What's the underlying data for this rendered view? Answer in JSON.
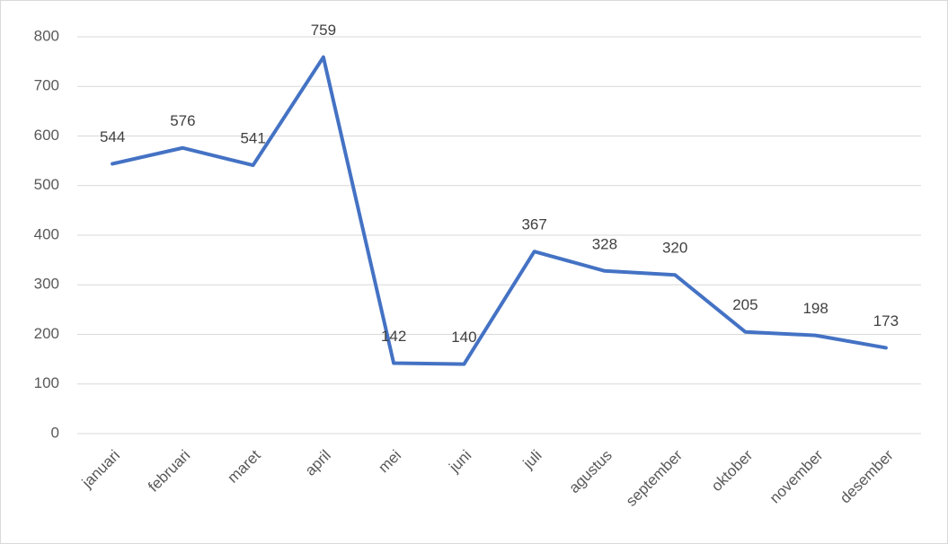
{
  "chart_data": {
    "type": "line",
    "categories": [
      "januari",
      "februari",
      "maret",
      "april",
      "mei",
      "juni",
      "juli",
      "agustus",
      "september",
      "oktober",
      "november",
      "desember"
    ],
    "values": [
      544,
      576,
      541,
      759,
      142,
      140,
      367,
      328,
      320,
      205,
      198,
      173
    ],
    "color": "#4472c4",
    "ylim": [
      0,
      800
    ],
    "yticks": [
      0,
      100,
      200,
      300,
      400,
      500,
      600,
      700,
      800
    ],
    "grid": true
  }
}
